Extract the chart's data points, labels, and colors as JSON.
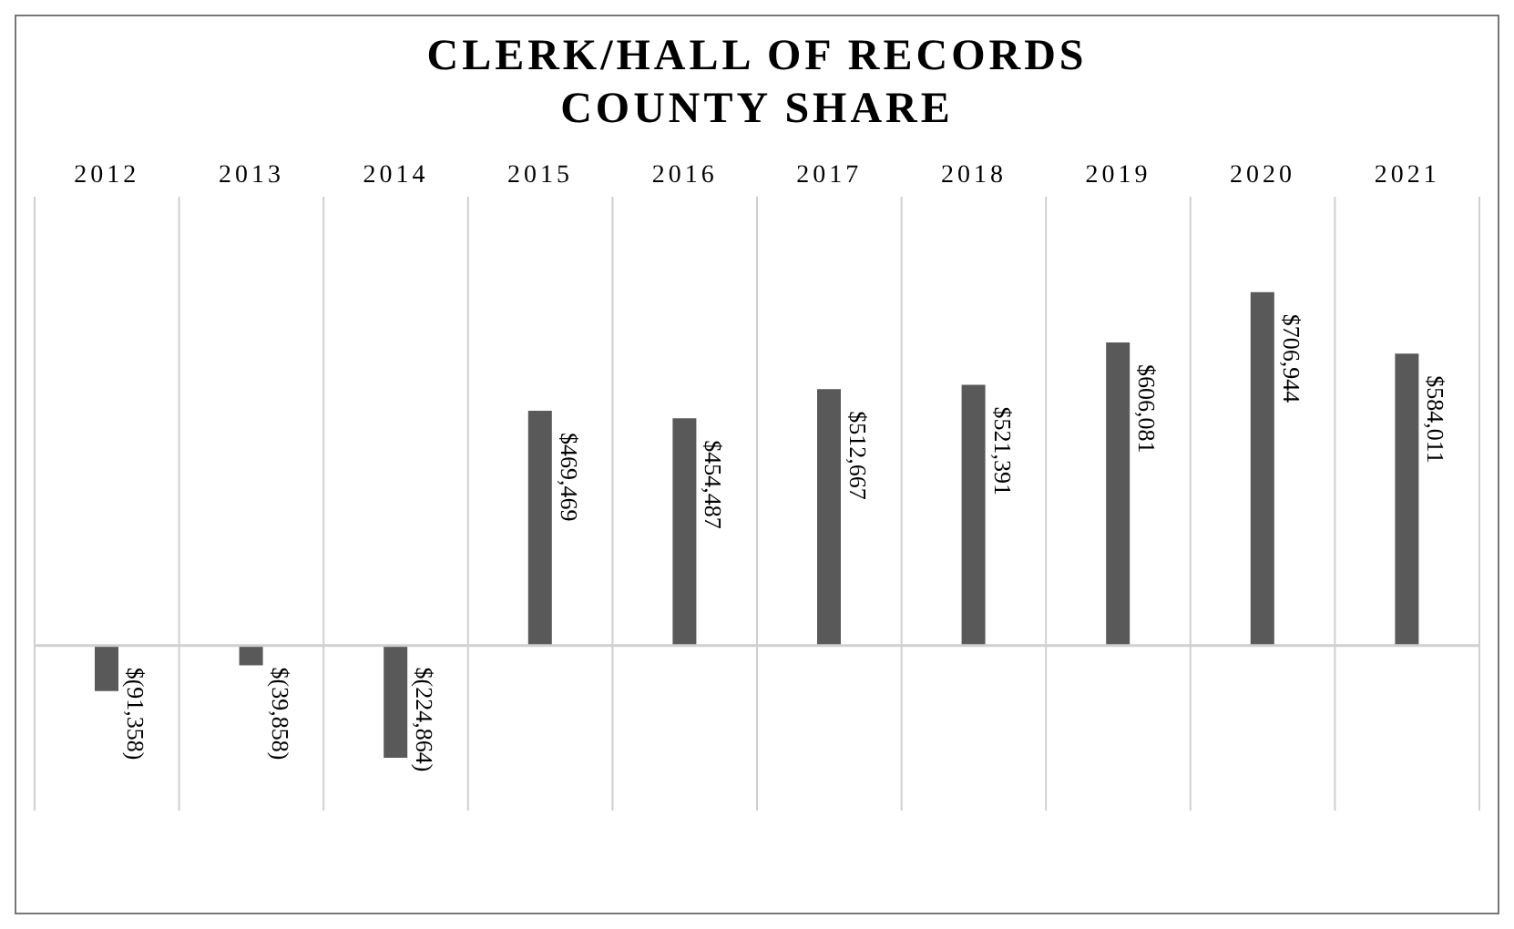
{
  "chart_data": {
    "type": "bar",
    "title": "CLERK/HALL OF RECORDS COUNTY SHARE",
    "categories": [
      "2012",
      "2013",
      "2014",
      "2015",
      "2016",
      "2017",
      "2018",
      "2019",
      "2020",
      "2021"
    ],
    "values": [
      -91358,
      -39858,
      -224864,
      469469,
      454487,
      512667,
      521391,
      606081,
      706944,
      584011
    ],
    "color": "#595959",
    "value_labels": [
      "$(91,358)",
      "$(39,858)",
      "$(224,864)",
      "$469,469",
      "$454,487",
      "$512,667",
      "$521,391",
      "$606,081",
      "$706,944",
      "$584,011"
    ],
    "grid": "x"
  }
}
